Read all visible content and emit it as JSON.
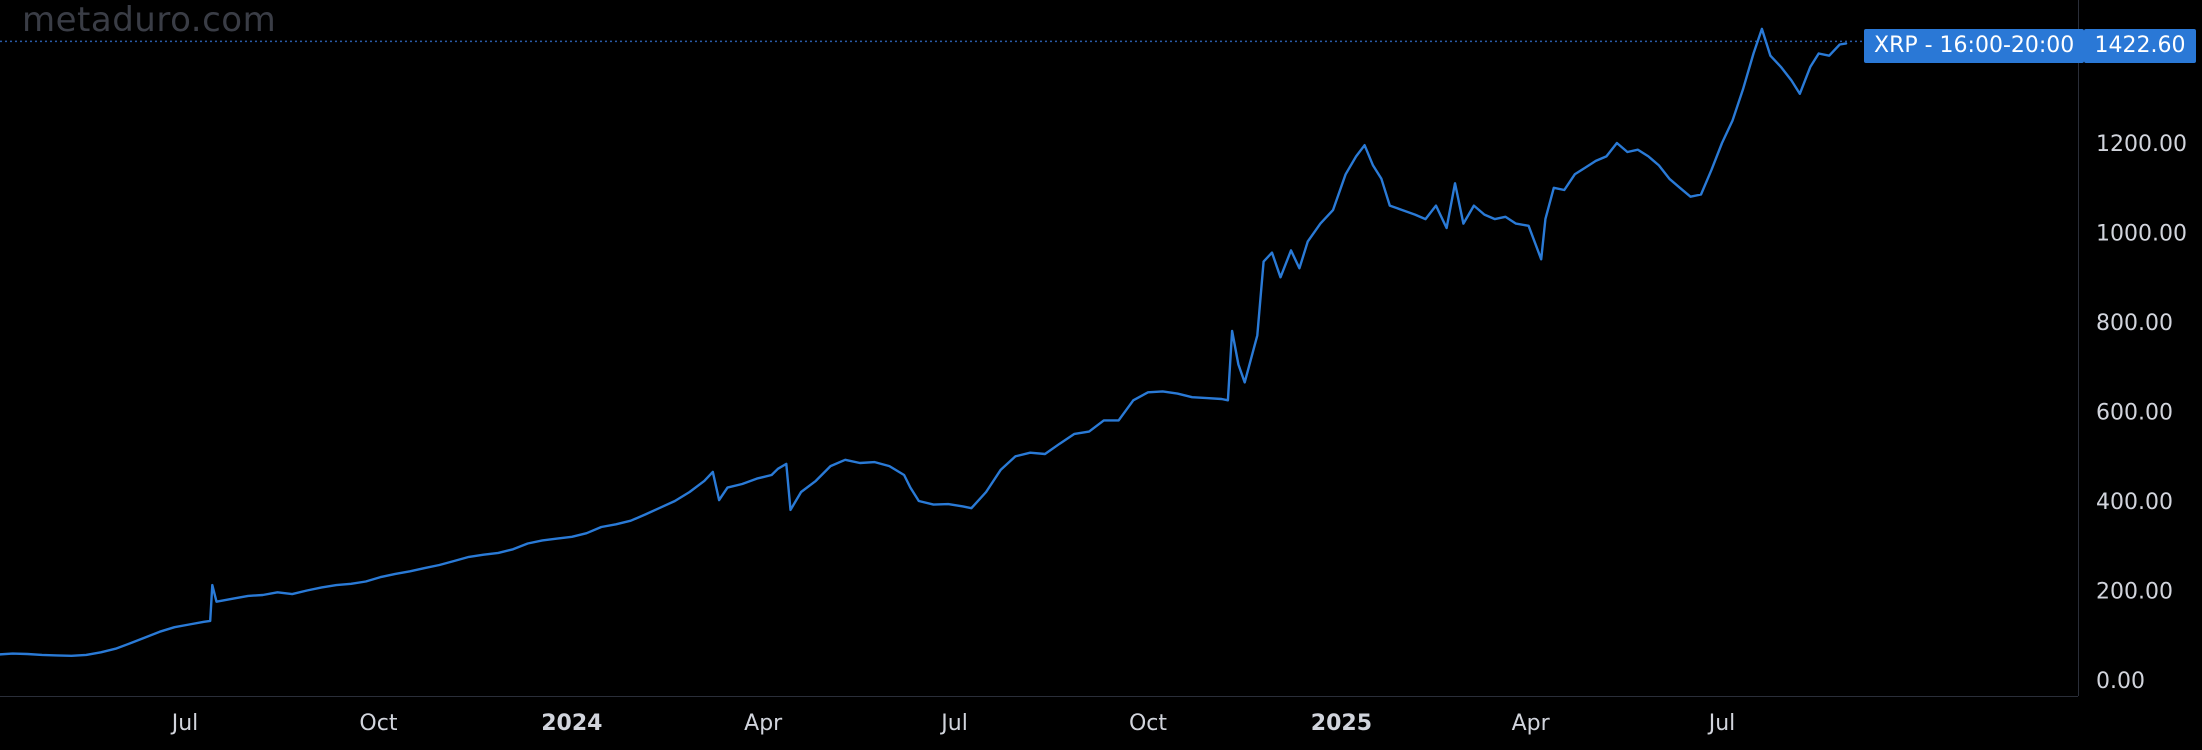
{
  "watermark": "metaduro.com",
  "colors": {
    "background": "#000000",
    "line": "#2a7ad6",
    "label": "#d1d4dc",
    "badge": "#2a78d6",
    "badge_text": "#ffffff",
    "dotted": "#2a5ba8"
  },
  "chart_data": {
    "type": "line",
    "series": [
      {
        "name": "XRP - 16:00-20:00",
        "points": [
          [
            "2023-03-20",
            62
          ],
          [
            "2023-03-27",
            66
          ],
          [
            "2023-04-03",
            57
          ],
          [
            "2023-04-10",
            59
          ],
          [
            "2023-04-17",
            58
          ],
          [
            "2023-04-24",
            56
          ],
          [
            "2023-05-01",
            55
          ],
          [
            "2023-05-08",
            54
          ],
          [
            "2023-05-15",
            56
          ],
          [
            "2023-05-22",
            62
          ],
          [
            "2023-05-29",
            70
          ],
          [
            "2023-06-05",
            82
          ],
          [
            "2023-06-12",
            95
          ],
          [
            "2023-06-19",
            108
          ],
          [
            "2023-06-26",
            118
          ],
          [
            "2023-07-03",
            124
          ],
          [
            "2023-07-10",
            130
          ],
          [
            "2023-07-13",
            132
          ],
          [
            "2023-07-14",
            212
          ],
          [
            "2023-07-16",
            175
          ],
          [
            "2023-07-24",
            182
          ],
          [
            "2023-07-31",
            188
          ],
          [
            "2023-08-07",
            190
          ],
          [
            "2023-08-14",
            196
          ],
          [
            "2023-08-21",
            192
          ],
          [
            "2023-08-28",
            200
          ],
          [
            "2023-09-04",
            207
          ],
          [
            "2023-09-11",
            212
          ],
          [
            "2023-09-18",
            215
          ],
          [
            "2023-09-25",
            220
          ],
          [
            "2023-10-02",
            230
          ],
          [
            "2023-10-09",
            237
          ],
          [
            "2023-10-16",
            243
          ],
          [
            "2023-10-23",
            250
          ],
          [
            "2023-10-30",
            257
          ],
          [
            "2023-11-06",
            266
          ],
          [
            "2023-11-13",
            275
          ],
          [
            "2023-11-20",
            280
          ],
          [
            "2023-11-27",
            284
          ],
          [
            "2023-12-04",
            292
          ],
          [
            "2023-12-11",
            305
          ],
          [
            "2023-12-18",
            312
          ],
          [
            "2023-12-25",
            316
          ],
          [
            "2024-01-01",
            320
          ],
          [
            "2024-01-08",
            328
          ],
          [
            "2024-01-15",
            342
          ],
          [
            "2024-01-22",
            348
          ],
          [
            "2024-01-29",
            356
          ],
          [
            "2024-02-05",
            370
          ],
          [
            "2024-02-12",
            385
          ],
          [
            "2024-02-19",
            400
          ],
          [
            "2024-02-26",
            420
          ],
          [
            "2024-03-04",
            445
          ],
          [
            "2024-03-08",
            465
          ],
          [
            "2024-03-11",
            402
          ],
          [
            "2024-03-15",
            430
          ],
          [
            "2024-03-22",
            438
          ],
          [
            "2024-03-29",
            450
          ],
          [
            "2024-04-05",
            458
          ],
          [
            "2024-04-08",
            472
          ],
          [
            "2024-04-12",
            483
          ],
          [
            "2024-04-14",
            380
          ],
          [
            "2024-04-19",
            420
          ],
          [
            "2024-04-26",
            445
          ],
          [
            "2024-05-03",
            478
          ],
          [
            "2024-05-10",
            492
          ],
          [
            "2024-05-17",
            485
          ],
          [
            "2024-05-24",
            487
          ],
          [
            "2024-05-31",
            478
          ],
          [
            "2024-06-07",
            458
          ],
          [
            "2024-06-10",
            430
          ],
          [
            "2024-06-14",
            400
          ],
          [
            "2024-06-21",
            392
          ],
          [
            "2024-06-28",
            393
          ],
          [
            "2024-07-05",
            388
          ],
          [
            "2024-07-09",
            384
          ],
          [
            "2024-07-16",
            420
          ],
          [
            "2024-07-23",
            470
          ],
          [
            "2024-07-30",
            500
          ],
          [
            "2024-08-06",
            508
          ],
          [
            "2024-08-13",
            505
          ],
          [
            "2024-08-20",
            528
          ],
          [
            "2024-08-27",
            550
          ],
          [
            "2024-09-03",
            555
          ],
          [
            "2024-09-10",
            580
          ],
          [
            "2024-09-17",
            580
          ],
          [
            "2024-09-24",
            625
          ],
          [
            "2024-10-01",
            643
          ],
          [
            "2024-10-08",
            645
          ],
          [
            "2024-10-15",
            640
          ],
          [
            "2024-10-22",
            632
          ],
          [
            "2024-10-29",
            630
          ],
          [
            "2024-11-05",
            628
          ],
          [
            "2024-11-08",
            625
          ],
          [
            "2024-11-10",
            780
          ],
          [
            "2024-11-13",
            705
          ],
          [
            "2024-11-16",
            665
          ],
          [
            "2024-11-22",
            770
          ],
          [
            "2024-11-25",
            935
          ],
          [
            "2024-11-29",
            955
          ],
          [
            "2024-12-03",
            900
          ],
          [
            "2024-12-08",
            960
          ],
          [
            "2024-12-12",
            920
          ],
          [
            "2024-12-16",
            980
          ],
          [
            "2024-12-22",
            1020
          ],
          [
            "2024-12-28",
            1050
          ],
          [
            "2025-01-03",
            1130
          ],
          [
            "2025-01-08",
            1170
          ],
          [
            "2025-01-12",
            1195
          ],
          [
            "2025-01-16",
            1150
          ],
          [
            "2025-01-20",
            1120
          ],
          [
            "2025-01-24",
            1060
          ],
          [
            "2025-01-30",
            1050
          ],
          [
            "2025-02-05",
            1040
          ],
          [
            "2025-02-10",
            1030
          ],
          [
            "2025-02-15",
            1060
          ],
          [
            "2025-02-20",
            1010
          ],
          [
            "2025-02-24",
            1110
          ],
          [
            "2025-02-28",
            1020
          ],
          [
            "2025-03-05",
            1060
          ],
          [
            "2025-03-10",
            1040
          ],
          [
            "2025-03-15",
            1030
          ],
          [
            "2025-03-20",
            1035
          ],
          [
            "2025-03-25",
            1020
          ],
          [
            "2025-03-31",
            1015
          ],
          [
            "2025-04-06",
            940
          ],
          [
            "2025-04-08",
            1030
          ],
          [
            "2025-04-12",
            1100
          ],
          [
            "2025-04-17",
            1095
          ],
          [
            "2025-04-22",
            1130
          ],
          [
            "2025-04-27",
            1145
          ],
          [
            "2025-05-02",
            1160
          ],
          [
            "2025-05-07",
            1170
          ],
          [
            "2025-05-12",
            1200
          ],
          [
            "2025-05-17",
            1180
          ],
          [
            "2025-05-22",
            1185
          ],
          [
            "2025-05-27",
            1170
          ],
          [
            "2025-06-01",
            1150
          ],
          [
            "2025-06-06",
            1120
          ],
          [
            "2025-06-11",
            1100
          ],
          [
            "2025-06-16",
            1080
          ],
          [
            "2025-06-21",
            1085
          ],
          [
            "2025-06-26",
            1140
          ],
          [
            "2025-07-01",
            1200
          ],
          [
            "2025-07-06",
            1250
          ],
          [
            "2025-07-11",
            1320
          ],
          [
            "2025-07-16",
            1400
          ],
          [
            "2025-07-20",
            1455
          ],
          [
            "2025-07-24",
            1395
          ],
          [
            "2025-07-29",
            1370
          ],
          [
            "2025-08-03",
            1340
          ],
          [
            "2025-08-07",
            1310
          ],
          [
            "2025-08-12",
            1370
          ],
          [
            "2025-08-16",
            1400
          ],
          [
            "2025-08-21",
            1395
          ],
          [
            "2025-08-26",
            1420
          ],
          [
            "2025-08-29",
            1422.6
          ]
        ]
      }
    ],
    "x_ticks": [
      {
        "date": "2023-07-01",
        "label": "Jul",
        "bold": false
      },
      {
        "date": "2023-10-01",
        "label": "Oct",
        "bold": false
      },
      {
        "date": "2024-01-01",
        "label": "2024",
        "bold": true
      },
      {
        "date": "2024-04-01",
        "label": "Apr",
        "bold": false
      },
      {
        "date": "2024-07-01",
        "label": "Jul",
        "bold": false
      },
      {
        "date": "2024-10-01",
        "label": "Oct",
        "bold": false
      },
      {
        "date": "2025-01-01",
        "label": "2025",
        "bold": true
      },
      {
        "date": "2025-04-01",
        "label": "Apr",
        "bold": false
      },
      {
        "date": "2025-07-01",
        "label": "Jul",
        "bold": false
      }
    ],
    "y_ticks": [
      "0.00",
      "200.00",
      "400.00",
      "600.00",
      "800.00",
      "1000.00",
      "1200.00"
    ],
    "ylim": [
      0,
      1500
    ],
    "last_value": "1422.60",
    "grid": false
  }
}
